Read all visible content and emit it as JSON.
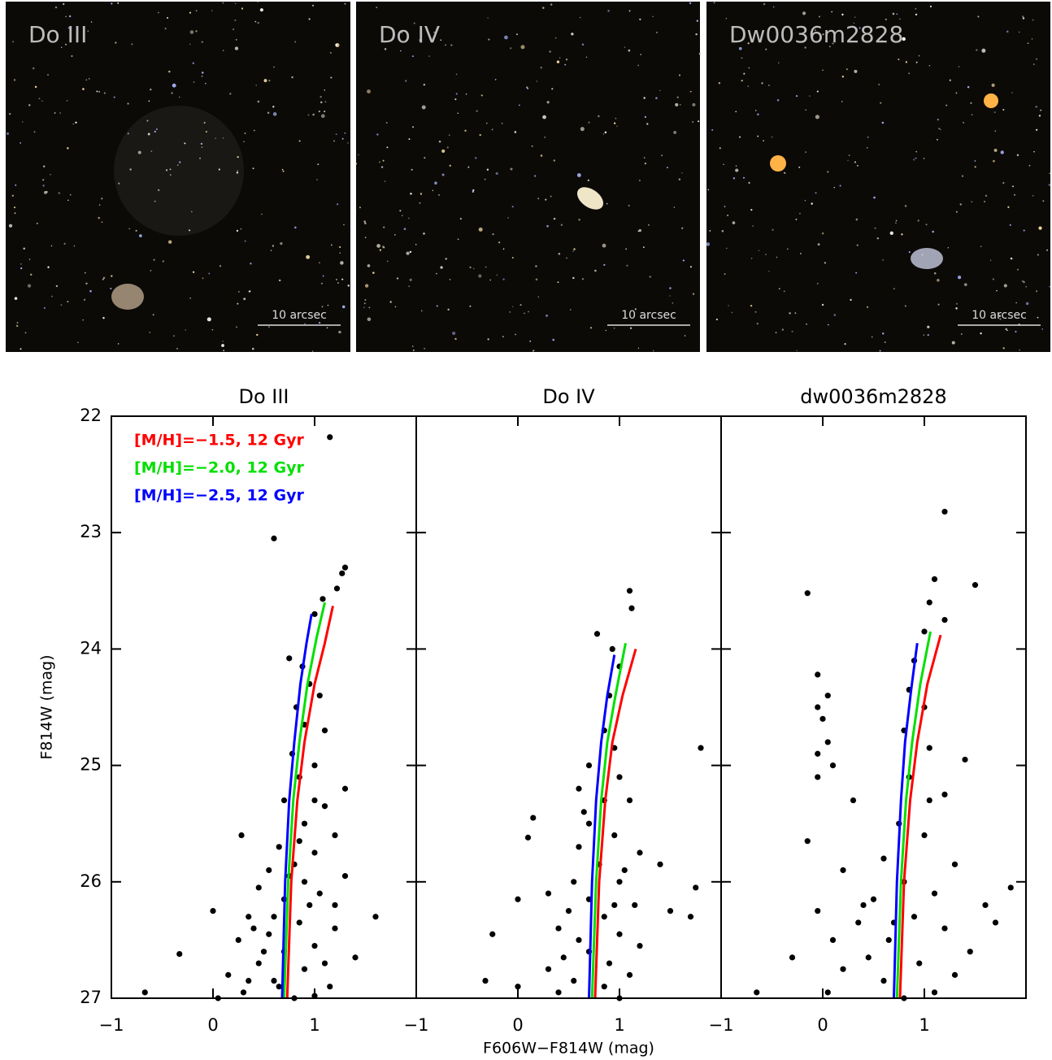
{
  "images": [
    {
      "label": "Do III",
      "scale_label": "10 arcsec"
    },
    {
      "label": "Do IV",
      "scale_label": "10 arcsec"
    },
    {
      "label": "Dw0036m2828",
      "scale_label": "10 arcsec"
    }
  ],
  "chart_data": [
    {
      "type": "scatter",
      "title": "Do III",
      "ylabel": "F814W (mag)",
      "xlim": [
        -1,
        2
      ],
      "ylim": [
        27,
        22
      ],
      "xticks": [
        {
          "value": -1,
          "label": "−1"
        },
        0,
        1
      ],
      "yticks": [
        22,
        23,
        24,
        25,
        26,
        27
      ],
      "show_ytick_labels": true,
      "legend": "upper left",
      "series": [
        {
          "mode": "markers",
          "color": "#000000",
          "x": [
            1.15,
            0.6,
            1.3,
            1.27,
            1.22,
            1.08,
            1.0,
            0.75,
            0.88,
            0.95,
            0.82,
            1.05,
            0.9,
            1.1,
            0.78,
            1.0,
            0.85,
            1.3,
            0.7,
            1.1,
            0.9,
            1.2,
            0.28,
            0.65,
            1.0,
            0.8,
            0.55,
            1.3,
            0.9,
            0.45,
            1.05,
            0.7,
            0.0,
            1.6,
            0.35,
            0.85,
            1.2,
            0.55,
            0.25,
            1.0,
            0.7,
            -0.33,
            1.4,
            0.45,
            0.9,
            0.15,
            0.6,
            1.15,
            -0.67,
            0.3,
            0.8,
            0.05,
            1.0,
            0.5,
            0.95,
            0.6,
            1.1,
            0.35,
            0.75,
            1.2,
            0.4,
            0.65,
            1.0,
            0.85
          ],
          "values": [
            22.18,
            23.05,
            23.3,
            23.35,
            23.48,
            23.57,
            23.7,
            24.08,
            24.15,
            24.3,
            24.5,
            24.4,
            24.65,
            24.7,
            24.9,
            25.0,
            25.1,
            25.2,
            25.3,
            25.35,
            25.5,
            25.6,
            25.6,
            25.7,
            25.75,
            25.85,
            25.9,
            25.95,
            26.0,
            26.05,
            26.1,
            26.15,
            26.25,
            26.3,
            26.3,
            26.35,
            26.4,
            26.45,
            26.5,
            26.55,
            26.6,
            26.62,
            26.65,
            26.7,
            26.75,
            26.8,
            26.85,
            26.9,
            26.95,
            26.95,
            27.0,
            27.0,
            26.98,
            26.6,
            26.2,
            26.3,
            26.7,
            26.85,
            25.95,
            26.2,
            26.4,
            26.9,
            25.3,
            25.65
          ]
        },
        {
          "mode": "lines",
          "name": "[M/H]=−1.5, 12 Gyr",
          "color": "#ff0000",
          "x": [
            0.73,
            0.77,
            0.83,
            0.9,
            1.0,
            1.1,
            1.18
          ],
          "values": [
            27,
            26,
            25.3,
            24.8,
            24.3,
            23.95,
            23.63
          ]
        },
        {
          "mode": "lines",
          "name": "[M/H]=−2.0, 12 Gyr",
          "color": "#00e000",
          "x": [
            0.7,
            0.74,
            0.79,
            0.85,
            0.93,
            1.02,
            1.1
          ],
          "values": [
            27,
            26,
            25.3,
            24.8,
            24.3,
            23.9,
            23.6
          ]
        },
        {
          "mode": "lines",
          "name": "[M/H]=−2.5, 12 Gyr",
          "color": "#0000ff",
          "x": [
            0.68,
            0.71,
            0.75,
            0.8,
            0.86,
            0.92,
            0.97
          ],
          "values": [
            27,
            26,
            25.3,
            24.8,
            24.3,
            23.95,
            23.7
          ]
        }
      ]
    },
    {
      "type": "scatter",
      "title": "Do IV",
      "xlabel": "F606W−F814W (mag)",
      "xlim": [
        -1,
        2
      ],
      "ylim": [
        27,
        22
      ],
      "xticks": [
        {
          "value": -1,
          "label": "−1"
        },
        0,
        1
      ],
      "yticks": [
        22,
        23,
        24,
        25,
        26,
        27
      ],
      "show_ytick_labels": false,
      "series": [
        {
          "mode": "markers",
          "color": "#000000",
          "x": [
            1.1,
            1.12,
            0.78,
            0.93,
            1.0,
            0.9,
            0.85,
            0.95,
            1.8,
            0.7,
            1.0,
            0.6,
            0.85,
            1.1,
            0.7,
            0.15,
            0.95,
            0.1,
            0.6,
            1.2,
            0.8,
            1.4,
            0.55,
            1.0,
            1.75,
            0.3,
            0.7,
            0.0,
            1.15,
            0.5,
            1.5,
            0.85,
            1.7,
            0.4,
            1.0,
            -0.25,
            0.6,
            1.2,
            0.45,
            0.9,
            0.3,
            1.1,
            0.55,
            -0.32,
            0.85,
            0.4,
            1.0,
            0.0,
            0.7,
            0.95,
            0.65,
            1.05
          ],
          "values": [
            23.5,
            23.65,
            23.87,
            24.0,
            24.15,
            24.4,
            24.7,
            24.85,
            24.85,
            25.0,
            25.1,
            25.2,
            25.3,
            25.3,
            25.5,
            25.45,
            25.6,
            25.62,
            25.7,
            25.75,
            25.85,
            25.85,
            26.0,
            26.0,
            26.05,
            26.1,
            26.15,
            26.15,
            26.2,
            26.25,
            26.25,
            26.3,
            26.3,
            26.4,
            26.45,
            26.45,
            26.5,
            26.55,
            26.65,
            26.7,
            26.75,
            26.8,
            26.85,
            26.85,
            26.9,
            26.95,
            27.0,
            26.9,
            26.6,
            26.2,
            25.4,
            25.9
          ]
        },
        {
          "mode": "lines",
          "color": "#ff0000",
          "x": [
            0.76,
            0.8,
            0.86,
            0.93,
            1.03,
            1.16
          ],
          "values": [
            27,
            26,
            25.3,
            24.8,
            24.4,
            24.0
          ]
        },
        {
          "mode": "lines",
          "color": "#00e000",
          "x": [
            0.73,
            0.77,
            0.82,
            0.88,
            0.96,
            1.06
          ],
          "values": [
            27,
            26,
            25.3,
            24.8,
            24.4,
            23.95
          ]
        },
        {
          "mode": "lines",
          "color": "#0000ff",
          "x": [
            0.7,
            0.73,
            0.77,
            0.82,
            0.88,
            0.95
          ],
          "values": [
            27,
            26,
            25.3,
            24.8,
            24.4,
            24.05
          ]
        }
      ]
    },
    {
      "type": "scatter",
      "title": "dw0036m2828",
      "xlim": [
        -1,
        2
      ],
      "ylim": [
        27,
        22
      ],
      "xticks": [
        {
          "value": -1,
          "label": "−1"
        },
        0,
        1
      ],
      "yticks": [
        22,
        23,
        24,
        25,
        26,
        27
      ],
      "show_ytick_labels": false,
      "series": [
        {
          "mode": "markers",
          "color": "#000000",
          "x": [
            1.2,
            1.1,
            -0.15,
            1.5,
            1.05,
            1.2,
            1.0,
            0.9,
            -0.05,
            0.85,
            0.05,
            1.0,
            -0.05,
            0.0,
            0.8,
            0.05,
            1.05,
            -0.05,
            0.1,
            1.4,
            0.85,
            -0.05,
            1.2,
            0.3,
            0.75,
            1.0,
            -0.15,
            0.6,
            1.3,
            0.2,
            0.8,
            1.1,
            1.85,
            0.5,
            1.6,
            -0.05,
            0.9,
            0.35,
            1.7,
            1.2,
            0.65,
            0.1,
            1.45,
            0.45,
            -0.3,
            0.95,
            0.2,
            1.3,
            0.6,
            -0.65,
            0.05,
            0.8,
            1.1,
            0.4,
            0.7,
            1.05
          ],
          "values": [
            22.82,
            23.4,
            23.52,
            23.45,
            23.6,
            23.75,
            23.85,
            24.1,
            24.22,
            24.35,
            24.4,
            24.5,
            24.5,
            24.6,
            24.7,
            24.8,
            24.85,
            24.9,
            25.0,
            24.95,
            25.1,
            25.1,
            25.25,
            25.3,
            25.5,
            25.6,
            25.65,
            25.8,
            25.85,
            25.9,
            26.0,
            26.1,
            26.05,
            26.15,
            26.2,
            26.25,
            26.3,
            26.35,
            26.35,
            26.4,
            26.5,
            26.5,
            26.6,
            26.65,
            26.65,
            26.7,
            26.75,
            26.8,
            26.85,
            26.95,
            26.95,
            27.0,
            26.95,
            26.2,
            26.35,
            25.3
          ]
        },
        {
          "mode": "lines",
          "color": "#ff0000",
          "x": [
            0.76,
            0.8,
            0.86,
            0.93,
            1.03,
            1.16
          ],
          "values": [
            27,
            26,
            25.3,
            24.8,
            24.3,
            23.88
          ]
        },
        {
          "mode": "lines",
          "color": "#00e000",
          "x": [
            0.73,
            0.77,
            0.82,
            0.88,
            0.96,
            1.06
          ],
          "values": [
            27,
            26,
            25.3,
            24.8,
            24.3,
            23.85
          ]
        },
        {
          "mode": "lines",
          "color": "#0000ff",
          "x": [
            0.7,
            0.73,
            0.77,
            0.81,
            0.87,
            0.93
          ],
          "values": [
            27,
            26,
            25.3,
            24.8,
            24.35,
            23.95
          ]
        }
      ]
    }
  ]
}
